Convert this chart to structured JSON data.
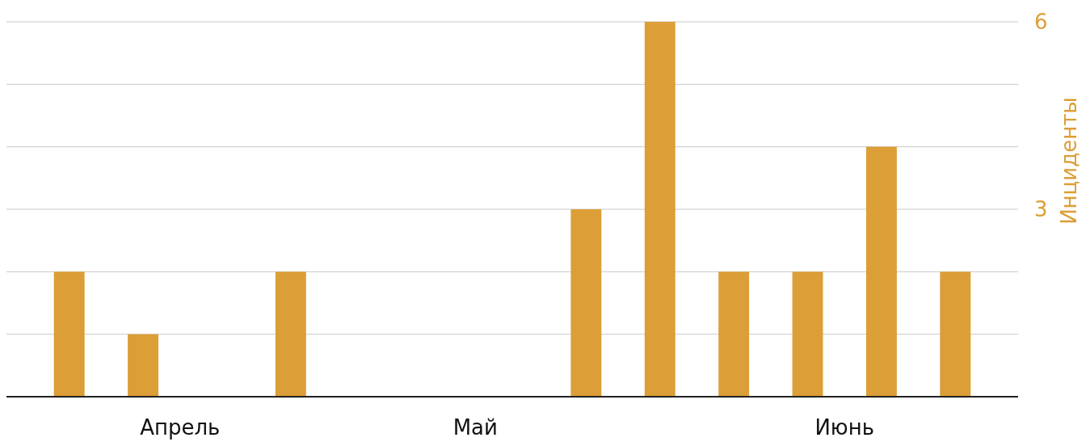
{
  "chart_data": {
    "type": "bar",
    "ylabel": "Инциденты",
    "color": "#dc9e36",
    "categories": [
      null,
      null,
      null,
      "Апрель",
      null,
      null,
      null,
      null,
      null,
      null,
      null,
      "Май",
      null,
      null,
      null,
      null,
      null,
      null,
      null,
      null,
      null,
      "Июнь",
      null,
      null,
      null
    ],
    "values": [
      2,
      null,
      1,
      null,
      0,
      null,
      2,
      null,
      0,
      null,
      0,
      null,
      0,
      null,
      3,
      null,
      6,
      null,
      2,
      null,
      2,
      null,
      4,
      null,
      2
    ],
    "ylim": [
      0,
      6
    ],
    "yticks": [
      {
        "value": 0,
        "label": null
      },
      {
        "value": 1,
        "label": null
      },
      {
        "value": 2,
        "label": null
      },
      3,
      {
        "value": 4,
        "label": null
      },
      {
        "value": 5,
        "label": null
      },
      6
    ],
    "grid": "y"
  }
}
